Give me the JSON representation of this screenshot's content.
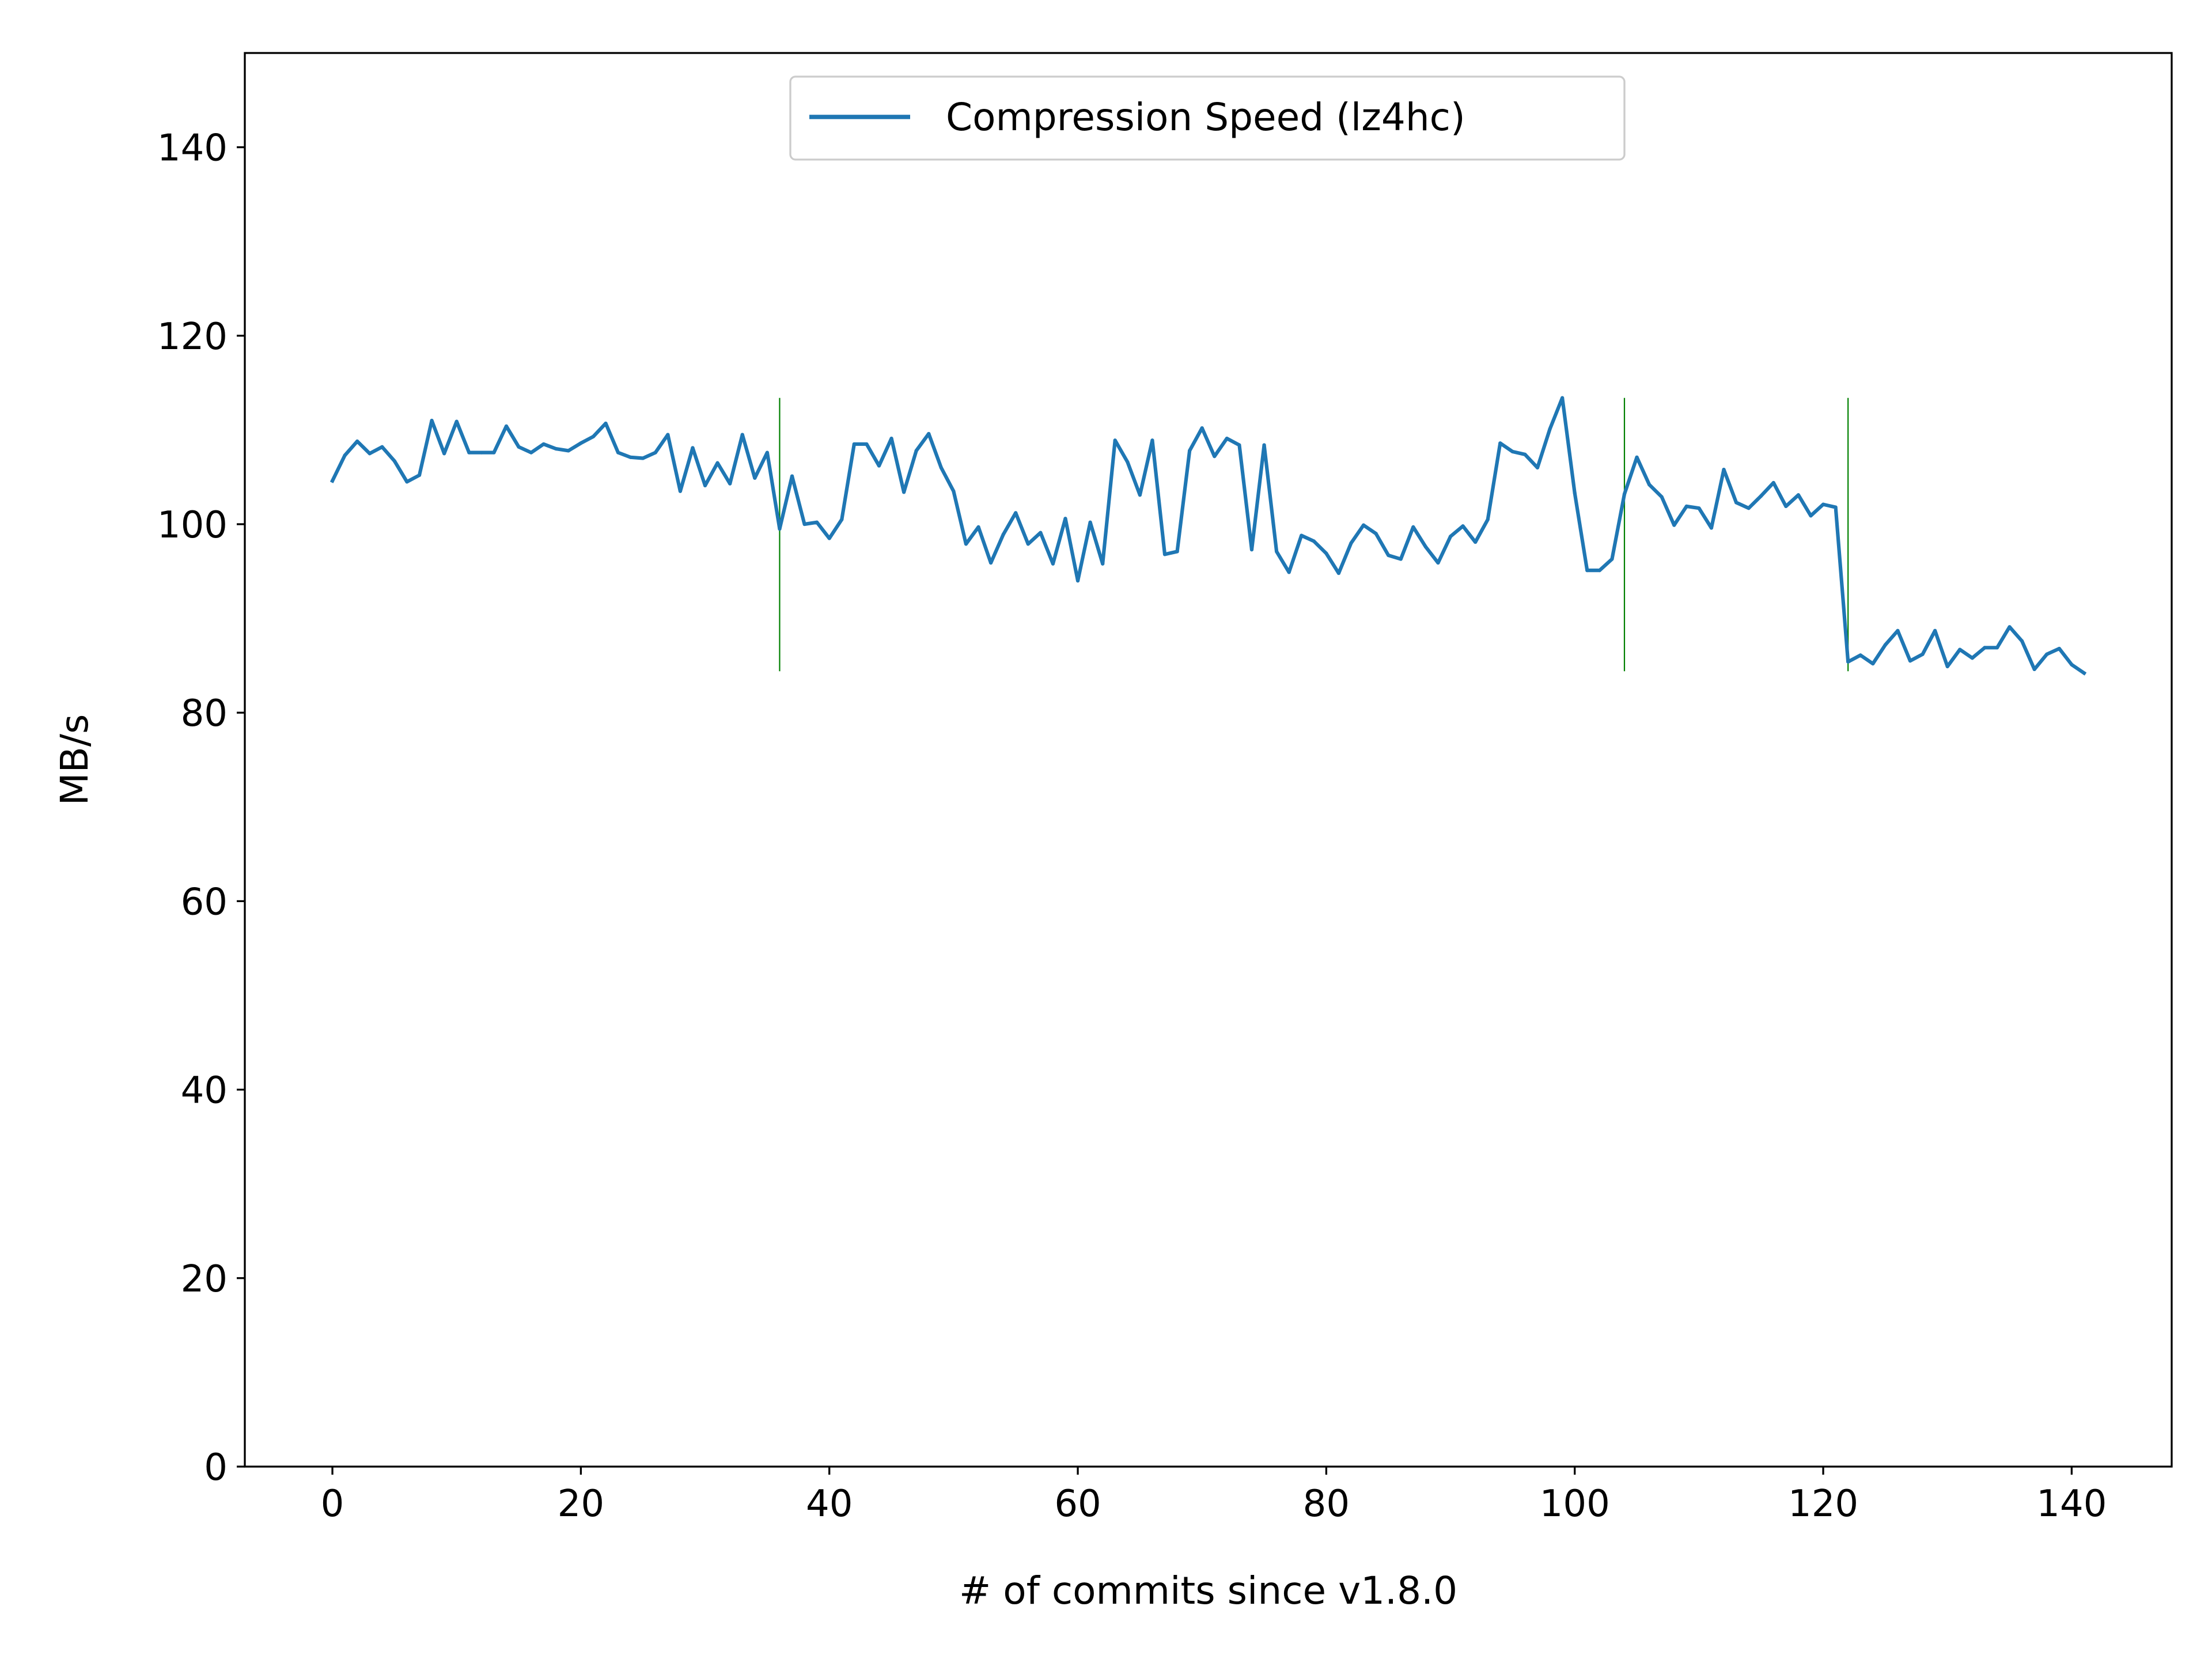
{
  "chart_data": {
    "type": "line",
    "title": "",
    "xlabel": "# of commits since v1.8.0",
    "ylabel": "MB/s",
    "xlim": [
      -7.05,
      148.05
    ],
    "ylim": [
      0,
      150
    ],
    "xticks": [
      0,
      20,
      40,
      60,
      80,
      100,
      120,
      140
    ],
    "yticks": [
      0,
      20,
      40,
      60,
      80,
      100,
      120,
      140
    ],
    "grid": false,
    "legend_position": "upper center",
    "series": [
      {
        "name": "Compression Speed (lz4hc)",
        "color": "#1f77b4",
        "x": [
          0,
          1,
          2,
          3,
          4,
          5,
          6,
          7,
          8,
          9,
          10,
          11,
          12,
          13,
          14,
          15,
          16,
          17,
          18,
          19,
          20,
          21,
          22,
          23,
          24,
          25,
          26,
          27,
          28,
          29,
          30,
          31,
          32,
          33,
          34,
          35,
          36,
          37,
          38,
          39,
          40,
          41,
          42,
          43,
          44,
          45,
          46,
          47,
          48,
          49,
          50,
          51,
          52,
          53,
          54,
          55,
          56,
          57,
          58,
          59,
          60,
          61,
          62,
          63,
          64,
          65,
          66,
          67,
          68,
          69,
          70,
          71,
          72,
          73,
          74,
          75,
          76,
          77,
          78,
          79,
          80,
          81,
          82,
          83,
          84,
          85,
          86,
          87,
          88,
          89,
          90,
          91,
          92,
          93,
          94,
          95,
          96,
          97,
          98,
          99,
          100,
          101,
          102,
          103,
          104,
          105,
          106,
          107,
          108,
          109,
          110,
          111,
          112,
          113,
          114,
          115,
          116,
          117,
          118,
          119,
          120,
          121,
          122,
          123,
          124,
          125,
          126,
          127,
          128,
          129,
          130,
          131,
          132,
          133,
          134,
          135,
          136,
          137,
          138,
          139,
          140,
          141
        ],
        "y": [
          104.6,
          107.3,
          108.8,
          107.5,
          108.2,
          106.7,
          104.5,
          105.2,
          111.0,
          107.5,
          110.9,
          107.6,
          107.6,
          107.6,
          110.4,
          108.2,
          107.6,
          108.5,
          108.0,
          107.8,
          108.6,
          109.3,
          110.7,
          107.6,
          107.1,
          107.0,
          107.6,
          109.5,
          103.5,
          108.1,
          104.1,
          106.5,
          104.3,
          109.5,
          104.9,
          107.6,
          99.5,
          105.1,
          100.0,
          100.2,
          98.5,
          100.5,
          108.5,
          108.5,
          106.2,
          109.1,
          103.4,
          107.8,
          109.6,
          106.0,
          103.5,
          97.9,
          99.7,
          95.9,
          98.9,
          101.2,
          97.9,
          99.1,
          95.8,
          100.6,
          94.0,
          100.2,
          95.8,
          108.9,
          106.6,
          103.1,
          108.9,
          96.8,
          97.1,
          107.8,
          110.2,
          107.2,
          109.1,
          108.4,
          97.3,
          108.4,
          97.1,
          94.9,
          98.8,
          98.2,
          96.9,
          94.8,
          98.0,
          99.9,
          99.0,
          96.7,
          96.3,
          99.7,
          97.6,
          95.9,
          98.7,
          99.8,
          98.1,
          100.5,
          108.6,
          107.7,
          107.4,
          106.0,
          110.1,
          113.4,
          103.3,
          95.1,
          95.1,
          96.3,
          103.2,
          107.1,
          104.2,
          102.9,
          99.9,
          101.9,
          101.7,
          99.6,
          105.8,
          102.3,
          101.7,
          103.0,
          104.4,
          101.9,
          103.1,
          100.9,
          102.1,
          101.8,
          85.4,
          86.1,
          85.2,
          87.2,
          88.7,
          85.5,
          86.2,
          88.7,
          84.9,
          86.7,
          85.8,
          86.9,
          86.9,
          89.1,
          87.6,
          84.6,
          86.2,
          86.8,
          85.1,
          84.2
        ]
      }
    ],
    "vlines": [
      {
        "x": 36,
        "ymin": 84.4,
        "ymax": 113.4,
        "color": "#008000"
      },
      {
        "x": 104,
        "ymin": 84.4,
        "ymax": 113.4,
        "color": "#008000"
      },
      {
        "x": 122,
        "ymin": 84.4,
        "ymax": 113.4,
        "color": "#008000"
      }
    ]
  }
}
